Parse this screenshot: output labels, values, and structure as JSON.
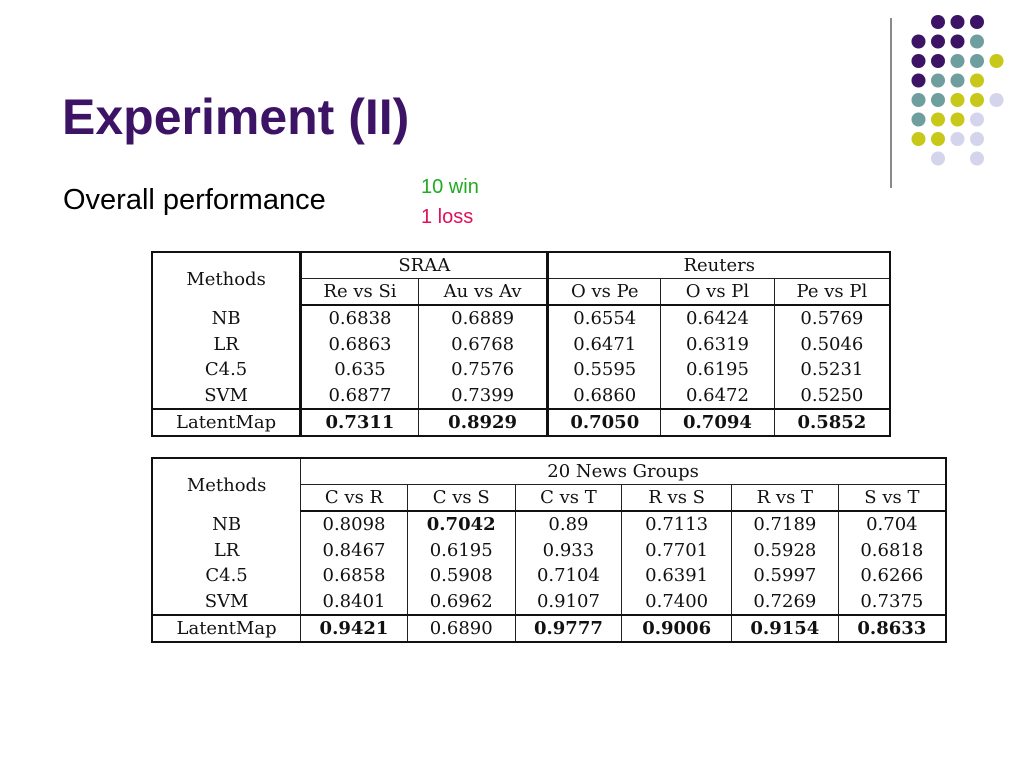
{
  "slide": {
    "title": "Experiment (II)",
    "subtitle": "Overall performance",
    "note_win": "10 win",
    "note_loss": "1 loss",
    "colors": {
      "title": "#3d1366",
      "win": "#22aa22",
      "loss": "#e0105a",
      "dot_purple": "#3d1366",
      "dot_teal": "#6f9e9e",
      "dot_yellow": "#c8c81a",
      "dot_lavender": "#d4d4ec"
    }
  },
  "table1": {
    "methods_header": "Methods",
    "group1": "SRAA",
    "group2": "Reuters",
    "cols": [
      "Re vs Si",
      "Au vs Av",
      "O vs Pe",
      "O vs Pl",
      "Pe vs Pl"
    ],
    "rows": [
      {
        "method": "NB",
        "values": [
          "0.6838",
          "0.6889",
          "0.6554",
          "0.6424",
          "0.5769"
        ]
      },
      {
        "method": "LR",
        "values": [
          "0.6863",
          "0.6768",
          "0.6471",
          "0.6319",
          "0.5046"
        ]
      },
      {
        "method": "C4.5",
        "values": [
          "0.635",
          "0.7576",
          "0.5595",
          "0.6195",
          "0.5231"
        ]
      },
      {
        "method": "SVM",
        "values": [
          "0.6877",
          "0.7399",
          "0.6860",
          "0.6472",
          "0.5250"
        ]
      }
    ],
    "last": {
      "method": "LatentMap",
      "values": [
        "0.7311",
        "0.8929",
        "0.7050",
        "0.7094",
        "0.5852"
      ]
    }
  },
  "table2": {
    "methods_header": "Methods",
    "group": "20 News Groups",
    "cols": [
      "C vs R",
      "C vs S",
      "C vs T",
      "R vs S",
      "R vs T",
      "S vs T"
    ],
    "rows": [
      {
        "method": "NB",
        "values": [
          "0.8098",
          "0.7042",
          "0.89",
          "0.7113",
          "0.7189",
          "0.704"
        ]
      },
      {
        "method": "LR",
        "values": [
          "0.8467",
          "0.6195",
          "0.933",
          "0.7701",
          "0.5928",
          "0.6818"
        ]
      },
      {
        "method": "C4.5",
        "values": [
          "0.6858",
          "0.5908",
          "0.7104",
          "0.6391",
          "0.5997",
          "0.6266"
        ]
      },
      {
        "method": "SVM",
        "values": [
          "0.8401",
          "0.6962",
          "0.9107",
          "0.7400",
          "0.7269",
          "0.7375"
        ]
      }
    ],
    "last": {
      "method": "LatentMap",
      "values": [
        "0.9421",
        "0.6890",
        "0.9777",
        "0.9006",
        "0.9154",
        "0.8633"
      ]
    }
  }
}
